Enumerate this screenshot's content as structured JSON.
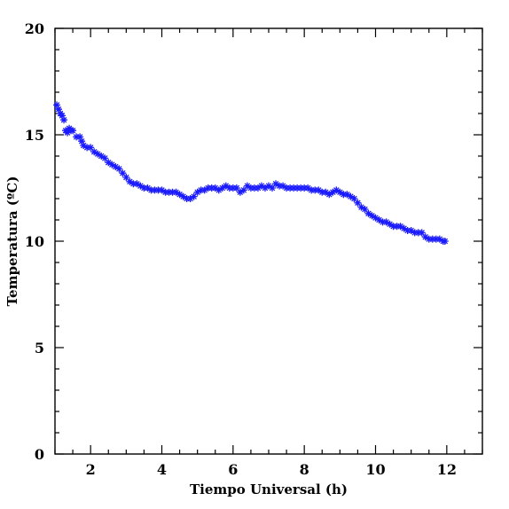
{
  "chart_data": {
    "type": "scatter",
    "title": "",
    "xlabel": "Tiempo Universal (h)",
    "ylabel": "Temperatura (ºC)",
    "xlim": [
      1.0,
      13.0
    ],
    "ylim": [
      0,
      20
    ],
    "x_ticks": [
      2,
      4,
      6,
      8,
      10,
      12
    ],
    "y_ticks": [
      0,
      5,
      10,
      15,
      20
    ],
    "grid": false,
    "marker": "asterisk",
    "marker_color": "#1a1aff",
    "series": [
      {
        "points": [
          [
            1.05,
            16.4
          ],
          [
            1.1,
            16.2
          ],
          [
            1.15,
            16.0
          ],
          [
            1.2,
            15.9
          ],
          [
            1.25,
            15.7
          ],
          [
            1.3,
            15.2
          ],
          [
            1.35,
            15.1
          ],
          [
            1.4,
            15.3
          ],
          [
            1.45,
            15.2
          ],
          [
            1.5,
            15.2
          ],
          [
            1.6,
            14.9
          ],
          [
            1.7,
            14.9
          ],
          [
            1.75,
            14.7
          ],
          [
            1.8,
            14.5
          ],
          [
            1.9,
            14.4
          ],
          [
            2.0,
            14.4
          ],
          [
            2.1,
            14.2
          ],
          [
            2.2,
            14.1
          ],
          [
            2.3,
            14.0
          ],
          [
            2.4,
            13.9
          ],
          [
            2.5,
            13.7
          ],
          [
            2.6,
            13.6
          ],
          [
            2.7,
            13.5
          ],
          [
            2.8,
            13.4
          ],
          [
            2.9,
            13.2
          ],
          [
            3.0,
            13.0
          ],
          [
            3.1,
            12.8
          ],
          [
            3.2,
            12.7
          ],
          [
            3.3,
            12.7
          ],
          [
            3.4,
            12.6
          ],
          [
            3.5,
            12.5
          ],
          [
            3.6,
            12.5
          ],
          [
            3.7,
            12.4
          ],
          [
            3.8,
            12.4
          ],
          [
            3.9,
            12.4
          ],
          [
            4.0,
            12.4
          ],
          [
            4.1,
            12.3
          ],
          [
            4.2,
            12.3
          ],
          [
            4.3,
            12.3
          ],
          [
            4.4,
            12.3
          ],
          [
            4.5,
            12.2
          ],
          [
            4.6,
            12.1
          ],
          [
            4.7,
            12.0
          ],
          [
            4.8,
            12.0
          ],
          [
            4.9,
            12.1
          ],
          [
            5.0,
            12.3
          ],
          [
            5.1,
            12.4
          ],
          [
            5.2,
            12.4
          ],
          [
            5.3,
            12.5
          ],
          [
            5.4,
            12.5
          ],
          [
            5.5,
            12.5
          ],
          [
            5.6,
            12.4
          ],
          [
            5.7,
            12.5
          ],
          [
            5.8,
            12.6
          ],
          [
            5.9,
            12.5
          ],
          [
            6.0,
            12.5
          ],
          [
            6.1,
            12.5
          ],
          [
            6.2,
            12.3
          ],
          [
            6.3,
            12.4
          ],
          [
            6.4,
            12.6
          ],
          [
            6.5,
            12.5
          ],
          [
            6.6,
            12.5
          ],
          [
            6.7,
            12.5
          ],
          [
            6.8,
            12.6
          ],
          [
            6.9,
            12.5
          ],
          [
            7.0,
            12.6
          ],
          [
            7.1,
            12.5
          ],
          [
            7.2,
            12.7
          ],
          [
            7.3,
            12.6
          ],
          [
            7.4,
            12.6
          ],
          [
            7.5,
            12.5
          ],
          [
            7.6,
            12.5
          ],
          [
            7.7,
            12.5
          ],
          [
            7.8,
            12.5
          ],
          [
            7.9,
            12.5
          ],
          [
            8.0,
            12.5
          ],
          [
            8.1,
            12.5
          ],
          [
            8.2,
            12.4
          ],
          [
            8.3,
            12.4
          ],
          [
            8.4,
            12.4
          ],
          [
            8.5,
            12.3
          ],
          [
            8.6,
            12.3
          ],
          [
            8.7,
            12.2
          ],
          [
            8.8,
            12.3
          ],
          [
            8.9,
            12.4
          ],
          [
            9.0,
            12.3
          ],
          [
            9.1,
            12.2
          ],
          [
            9.2,
            12.2
          ],
          [
            9.3,
            12.1
          ],
          [
            9.4,
            12.0
          ],
          [
            9.5,
            11.8
          ],
          [
            9.6,
            11.6
          ],
          [
            9.7,
            11.5
          ],
          [
            9.8,
            11.3
          ],
          [
            9.9,
            11.2
          ],
          [
            10.0,
            11.1
          ],
          [
            10.1,
            11.0
          ],
          [
            10.2,
            10.9
          ],
          [
            10.3,
            10.9
          ],
          [
            10.4,
            10.8
          ],
          [
            10.5,
            10.7
          ],
          [
            10.6,
            10.7
          ],
          [
            10.7,
            10.7
          ],
          [
            10.8,
            10.6
          ],
          [
            10.9,
            10.5
          ],
          [
            11.0,
            10.5
          ],
          [
            11.1,
            10.4
          ],
          [
            11.2,
            10.4
          ],
          [
            11.3,
            10.4
          ],
          [
            11.4,
            10.2
          ],
          [
            11.5,
            10.1
          ],
          [
            11.6,
            10.1
          ],
          [
            11.7,
            10.1
          ],
          [
            11.8,
            10.1
          ],
          [
            11.9,
            10.0
          ],
          [
            11.95,
            10.0
          ]
        ]
      }
    ]
  }
}
